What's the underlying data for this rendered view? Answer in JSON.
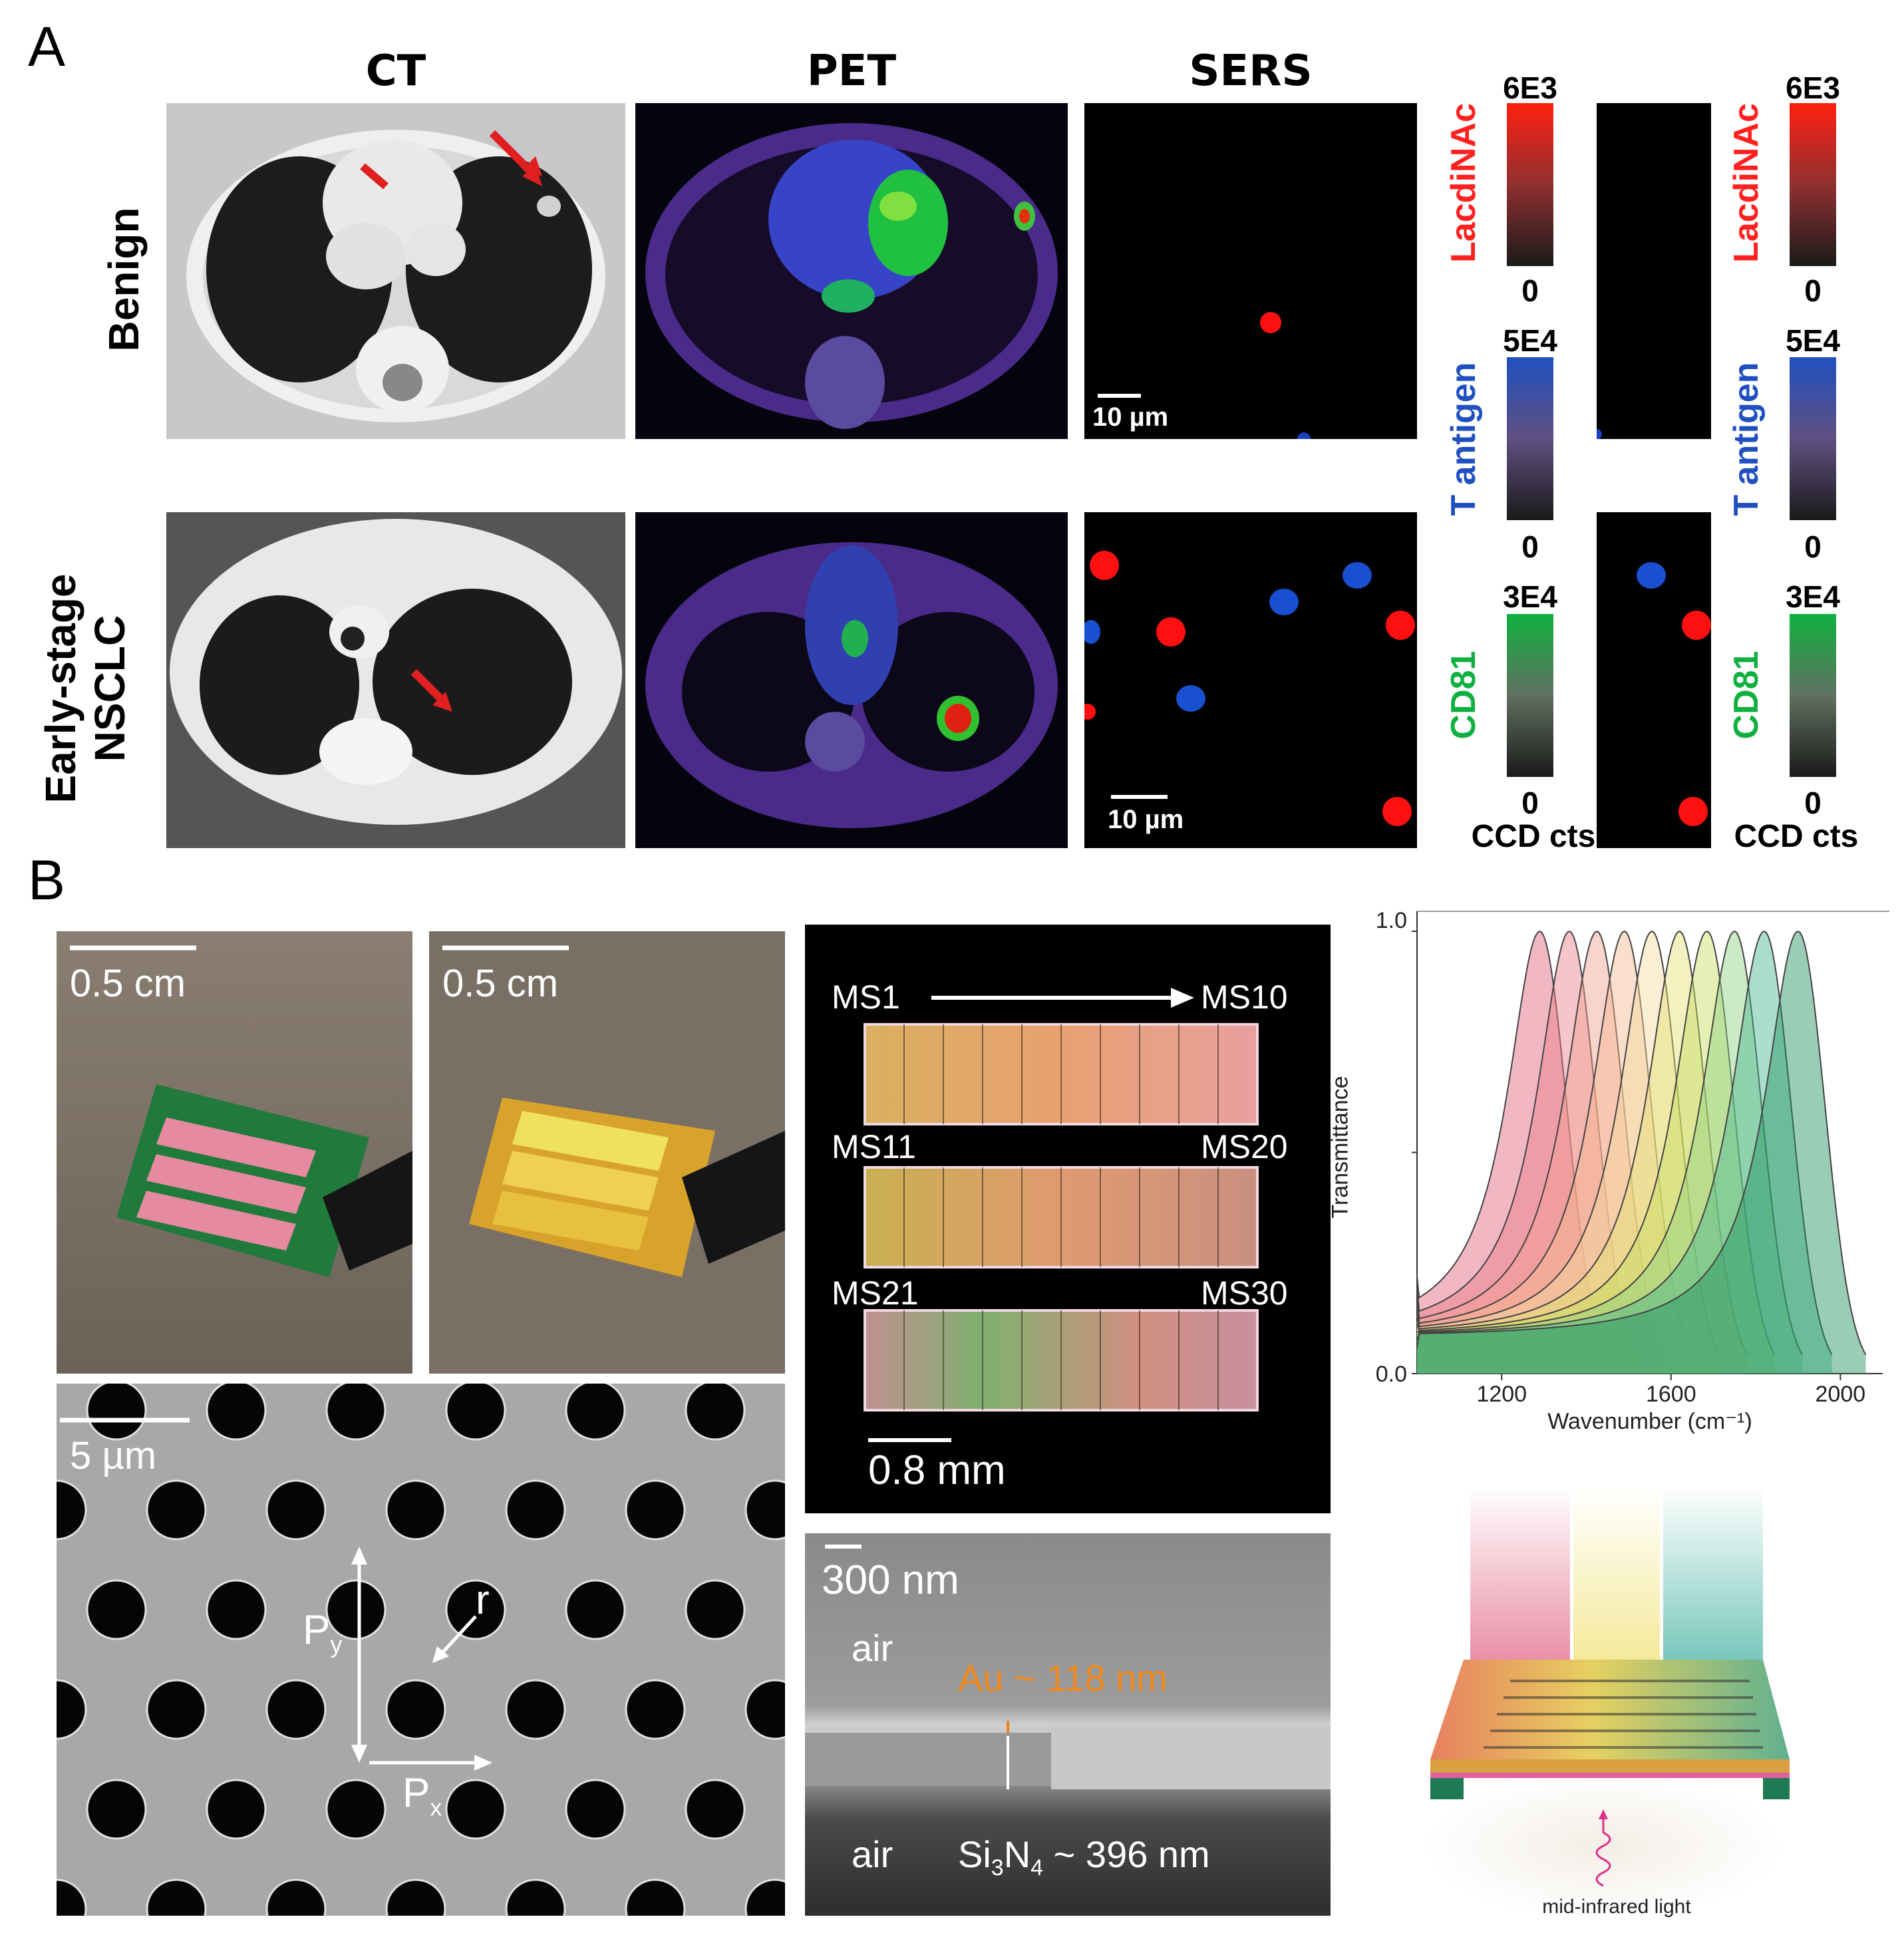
{
  "panelA": {
    "letter": "A",
    "columns": [
      "CT",
      "PET",
      "SERS"
    ],
    "rows": [
      "Benign",
      "Early-stage NSCLC"
    ],
    "row2_line1": "Early-stage",
    "row2_line2": "NSCLC",
    "scalebar": "10 µm",
    "colorbars": [
      {
        "name": "LacdiNAc",
        "max": "6E3",
        "min": "0",
        "color": "#ff2020"
      },
      {
        "name": "T antigen",
        "max": "5E4",
        "min": "0",
        "color": "#2050c0"
      },
      {
        "name": "CD81",
        "max": "3E4",
        "min": "0",
        "color": "#10b040"
      }
    ],
    "unit": "CCD cts"
  },
  "panelB": {
    "letter": "B",
    "photo_scale": "0.5 cm",
    "sem_scale": "5 µm",
    "sem_labels": {
      "py": "P",
      "py_sub": "y",
      "px": "P",
      "px_sub": "x",
      "r": "r"
    },
    "array_labels": {
      "ms1": "MS1",
      "ms10": "MS10",
      "ms11": "MS11",
      "ms20": "MS20",
      "ms21": "MS21",
      "ms30": "MS30",
      "scale": "0.8 mm"
    },
    "cross_section": {
      "scale": "300 nm",
      "air_top": "air",
      "au": "Au ~ 118 nm",
      "air_bottom": "air",
      "si_main": "Si",
      "si_sub": "3",
      "si_n": "N",
      "si_n_sub": "4",
      "si_value": "~ 396 nm"
    },
    "device_caption": "mid-infrared light"
  },
  "chart_data": {
    "type": "area",
    "xlabel": "Wavenumber (cm⁻¹)",
    "ylabel": "Transmittance",
    "xticks": [
      "1200",
      "1600",
      "2000"
    ],
    "yticks": [
      "0.0",
      "1.0"
    ],
    "xlim": [
      1000,
      2100
    ],
    "ylim": [
      0,
      1
    ],
    "series": [
      {
        "peak": 1290,
        "color": "#e0607a"
      },
      {
        "peak": 1360,
        "color": "#ec7f87"
      },
      {
        "peak": 1425,
        "color": "#f2a090"
      },
      {
        "peak": 1490,
        "color": "#f6b890"
      },
      {
        "peak": 1555,
        "color": "#f3d9a0"
      },
      {
        "peak": 1620,
        "color": "#e3e070"
      },
      {
        "peak": 1685,
        "color": "#c5dd60"
      },
      {
        "peak": 1750,
        "color": "#8fd080"
      },
      {
        "peak": 1820,
        "color": "#45b590"
      },
      {
        "peak": 1900,
        "color": "#1e9060"
      }
    ]
  }
}
